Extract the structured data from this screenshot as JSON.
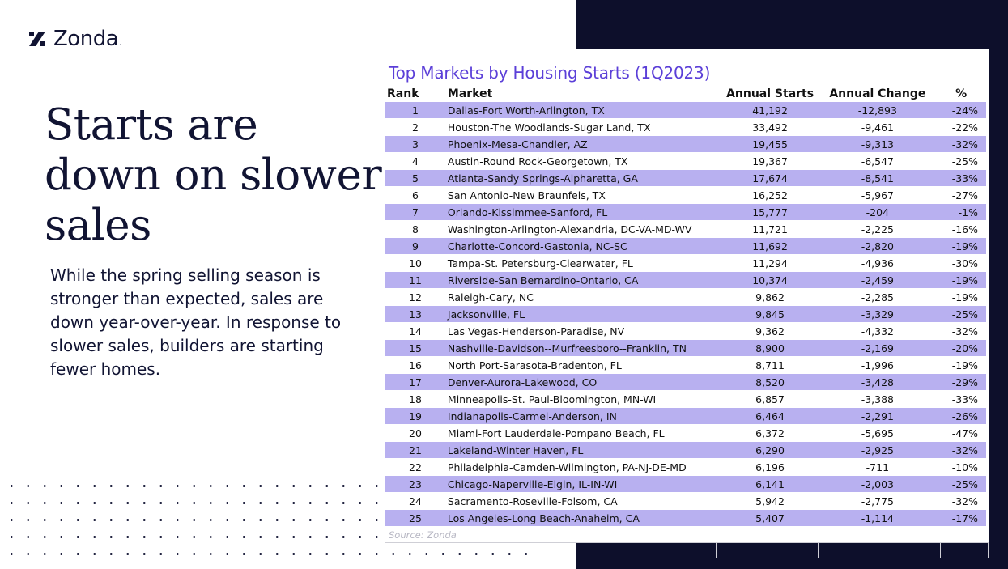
{
  "brand": {
    "name": "Zonda",
    "trailing_dot": "."
  },
  "headline": "Starts are down on slower sales",
  "body": "While the spring selling season is stronger than expected, sales are down year-over-year. In response to slower sales, builders are starting fewer homes.",
  "table": {
    "title": "Top Markets by Housing Starts (1Q2023)",
    "headers": {
      "rank": "Rank",
      "market": "Market",
      "starts": "Annual Starts",
      "change": "Annual Change",
      "pct": "%"
    },
    "rows": [
      {
        "rank": "1",
        "market": "Dallas-Fort Worth-Arlington, TX",
        "starts": "41,192",
        "change": "-12,893",
        "pct": "-24%"
      },
      {
        "rank": "2",
        "market": "Houston-The Woodlands-Sugar Land, TX",
        "starts": "33,492",
        "change": "-9,461",
        "pct": "-22%"
      },
      {
        "rank": "3",
        "market": "Phoenix-Mesa-Chandler, AZ",
        "starts": "19,455",
        "change": "-9,313",
        "pct": "-32%"
      },
      {
        "rank": "4",
        "market": "Austin-Round Rock-Georgetown, TX",
        "starts": "19,367",
        "change": "-6,547",
        "pct": "-25%"
      },
      {
        "rank": "5",
        "market": "Atlanta-Sandy Springs-Alpharetta, GA",
        "starts": "17,674",
        "change": "-8,541",
        "pct": "-33%"
      },
      {
        "rank": "6",
        "market": "San Antonio-New Braunfels, TX",
        "starts": "16,252",
        "change": "-5,967",
        "pct": "-27%"
      },
      {
        "rank": "7",
        "market": "Orlando-Kissimmee-Sanford, FL",
        "starts": "15,777",
        "change": "-204",
        "pct": "-1%"
      },
      {
        "rank": "8",
        "market": "Washington-Arlington-Alexandria, DC-VA-MD-WV",
        "starts": "11,721",
        "change": "-2,225",
        "pct": "-16%"
      },
      {
        "rank": "9",
        "market": "Charlotte-Concord-Gastonia, NC-SC",
        "starts": "11,692",
        "change": "-2,820",
        "pct": "-19%"
      },
      {
        "rank": "10",
        "market": "Tampa-St. Petersburg-Clearwater, FL",
        "starts": "11,294",
        "change": "-4,936",
        "pct": "-30%"
      },
      {
        "rank": "11",
        "market": "Riverside-San Bernardino-Ontario, CA",
        "starts": "10,374",
        "change": "-2,459",
        "pct": "-19%"
      },
      {
        "rank": "12",
        "market": "Raleigh-Cary, NC",
        "starts": "9,862",
        "change": "-2,285",
        "pct": "-19%"
      },
      {
        "rank": "13",
        "market": "Jacksonville, FL",
        "starts": "9,845",
        "change": "-3,329",
        "pct": "-25%"
      },
      {
        "rank": "14",
        "market": "Las Vegas-Henderson-Paradise, NV",
        "starts": "9,362",
        "change": "-4,332",
        "pct": "-32%"
      },
      {
        "rank": "15",
        "market": "Nashville-Davidson--Murfreesboro--Franklin, TN",
        "starts": "8,900",
        "change": "-2,169",
        "pct": "-20%"
      },
      {
        "rank": "16",
        "market": "North Port-Sarasota-Bradenton, FL",
        "starts": "8,711",
        "change": "-1,996",
        "pct": "-19%"
      },
      {
        "rank": "17",
        "market": "Denver-Aurora-Lakewood, CO",
        "starts": "8,520",
        "change": "-3,428",
        "pct": "-29%"
      },
      {
        "rank": "18",
        "market": "Minneapolis-St. Paul-Bloomington, MN-WI",
        "starts": "6,857",
        "change": "-3,388",
        "pct": "-33%"
      },
      {
        "rank": "19",
        "market": "Indianapolis-Carmel-Anderson, IN",
        "starts": "6,464",
        "change": "-2,291",
        "pct": "-26%"
      },
      {
        "rank": "20",
        "market": "Miami-Fort Lauderdale-Pompano Beach, FL",
        "starts": "6,372",
        "change": "-5,695",
        "pct": "-47%"
      },
      {
        "rank": "21",
        "market": "Lakeland-Winter Haven, FL",
        "starts": "6,290",
        "change": "-2,925",
        "pct": "-32%"
      },
      {
        "rank": "22",
        "market": "Philadelphia-Camden-Wilmington, PA-NJ-DE-MD",
        "starts": "6,196",
        "change": "-711",
        "pct": "-10%"
      },
      {
        "rank": "23",
        "market": "Chicago-Naperville-Elgin, IL-IN-WI",
        "starts": "6,141",
        "change": "-2,003",
        "pct": "-25%"
      },
      {
        "rank": "24",
        "market": "Sacramento-Roseville-Folsom, CA",
        "starts": "5,942",
        "change": "-2,775",
        "pct": "-32%"
      },
      {
        "rank": "25",
        "market": "Los Angeles-Long Beach-Anaheim, CA",
        "starts": "5,407",
        "change": "-1,114",
        "pct": "-17%"
      }
    ],
    "source": "Source: Zonda"
  },
  "colors": {
    "navy": "#0d0f2b",
    "purple_title": "#5b3fd8",
    "row_highlight": "#b8b0f0",
    "text": "#111433"
  }
}
